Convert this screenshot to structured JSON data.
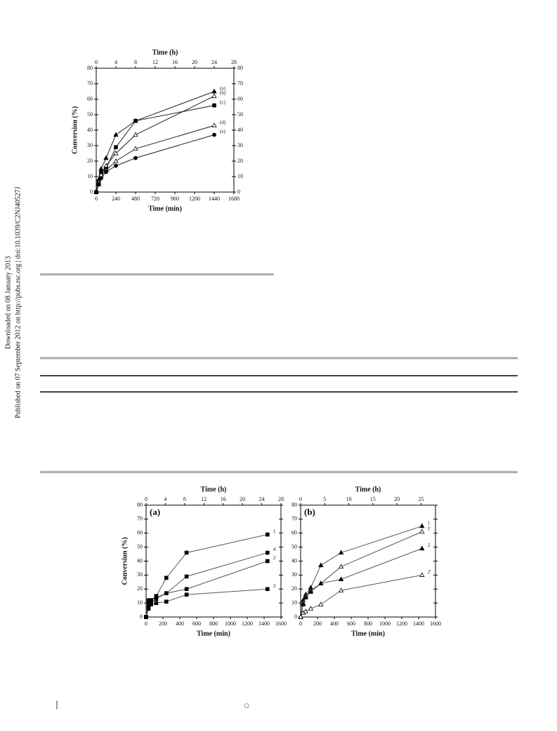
{
  "sidebar": {
    "downloaded": "Downloaded on 08 January 2013",
    "published": "Published on 07 September 2012 on http://pubs.rsc.org | doi:10.1039/C2NJ40527J"
  },
  "chart_data": [
    {
      "type": "line",
      "x_label": "Time (min)",
      "x2_label": "Time (h)",
      "y_label": "Conversion (%)",
      "x": [
        0,
        30,
        60,
        120,
        240,
        480,
        1440
      ],
      "xlim": [
        0,
        1680
      ],
      "xticks": [
        0,
        240,
        480,
        720,
        960,
        1200,
        1440,
        1680
      ],
      "x2lim": [
        0,
        28
      ],
      "x2ticks": [
        0,
        4,
        8,
        12,
        16,
        20,
        24,
        28
      ],
      "ylim": [
        0,
        80
      ],
      "yticks": [
        0,
        10,
        20,
        30,
        40,
        50,
        60,
        70,
        80
      ],
      "right_tick_labels": true,
      "series": [
        {
          "name": "(a)",
          "marker": "triangle",
          "color": "#222",
          "values": [
            0,
            8,
            15,
            22,
            37,
            46,
            65
          ]
        },
        {
          "name": "(b)",
          "marker": "triangle-open",
          "color": "#222",
          "values": [
            0,
            5,
            12,
            17,
            25,
            37,
            62
          ]
        },
        {
          "name": "(c)",
          "marker": "square",
          "color": "#222",
          "values": [
            0,
            7,
            13,
            15,
            29,
            46,
            56
          ]
        },
        {
          "name": "(d)",
          "marker": "triangle-open",
          "color": "#222",
          "values": [
            0,
            6,
            11,
            14,
            20,
            28,
            43
          ]
        },
        {
          "name": "(e)",
          "marker": "circle",
          "color": "#222",
          "values": [
            0,
            5,
            9,
            13,
            17,
            22,
            37
          ]
        }
      ]
    },
    {
      "type": "line",
      "panel": "(a)",
      "x_label": "Time (min)",
      "x2_label": "Time (h)",
      "y_label": "Conversion (%)",
      "x": [
        0,
        30,
        60,
        120,
        240,
        480,
        1440
      ],
      "xlim": [
        0,
        1600
      ],
      "xticks": [
        0,
        200,
        400,
        600,
        800,
        1000,
        1200,
        1400,
        1600
      ],
      "x2lim": [
        0,
        28
      ],
      "x2ticks": [
        0,
        4,
        8,
        12,
        16,
        20,
        24,
        28
      ],
      "ylim": [
        0,
        80
      ],
      "yticks": [
        0,
        10,
        20,
        30,
        40,
        50,
        60,
        70,
        80
      ],
      "right_tick_labels": false,
      "series": [
        {
          "name": "1",
          "marker": "square",
          "color": "#555",
          "values": [
            0,
            12,
            12,
            15,
            28,
            46,
            59
          ]
        },
        {
          "name": "4",
          "marker": "square",
          "color": "#555",
          "values": [
            0,
            10,
            12,
            14,
            17,
            29,
            46
          ]
        },
        {
          "name": "2",
          "marker": "square",
          "color": "#555",
          "values": [
            0,
            8,
            10,
            13,
            17,
            20,
            40
          ]
        },
        {
          "name": "3",
          "marker": "square",
          "color": "#555",
          "values": [
            0,
            6,
            9,
            10,
            11,
            16,
            20
          ]
        }
      ]
    },
    {
      "type": "line",
      "panel": "(b)",
      "x_label": "Time (min)",
      "x2_label": "Time (h)",
      "y_label": null,
      "x": [
        0,
        30,
        60,
        120,
        240,
        480,
        1440
      ],
      "xlim": [
        0,
        1600
      ],
      "xticks": [
        0,
        200,
        400,
        600,
        800,
        1000,
        1200,
        1400,
        1600
      ],
      "x2lim": [
        0,
        28
      ],
      "x2ticks": [
        0,
        5,
        10,
        15,
        20,
        25
      ],
      "ylim": [
        0,
        80
      ],
      "yticks": [
        0,
        10,
        20,
        30,
        40,
        50,
        60,
        70,
        80
      ],
      "right_tick_labels": false,
      "series": [
        {
          "name": "1",
          "marker": "triangle",
          "color": "#555",
          "values": [
            0,
            12,
            16,
            21,
            37,
            46,
            65
          ]
        },
        {
          "name": "1'",
          "marker": "triangle-open",
          "color": "#555",
          "values": [
            0,
            10,
            15,
            19,
            24,
            36,
            61
          ]
        },
        {
          "name": "2",
          "marker": "triangle",
          "color": "#555",
          "values": [
            0,
            9,
            14,
            18,
            24,
            27,
            49
          ]
        },
        {
          "name": "2'",
          "marker": "triangle-open",
          "color": "#555",
          "values": [
            0,
            3,
            4,
            6,
            9,
            19,
            30
          ]
        }
      ]
    }
  ]
}
